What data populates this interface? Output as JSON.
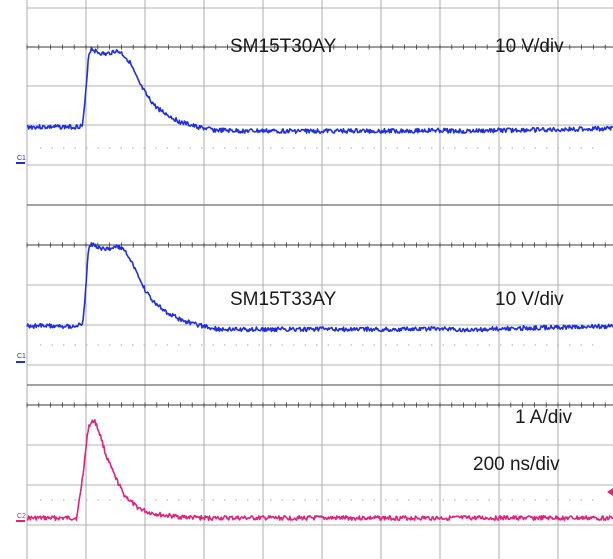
{
  "chart_data": [
    {
      "type": "line",
      "title": "",
      "label": "SM15T30AY",
      "scale_label": "10 V/div",
      "channel": "C1",
      "color": "#1f2fe0",
      "xlabel": "",
      "ylabel": "",
      "xlim": [
        0,
        10
      ],
      "ylim": [
        -1,
        3.5
      ],
      "grid": true,
      "x": [
        0,
        0.8,
        0.95,
        1.0,
        1.05,
        1.1,
        1.2,
        1.35,
        1.5,
        1.6,
        1.75,
        1.9,
        2.05,
        2.2,
        2.4,
        2.6,
        2.9,
        3.2,
        3.6,
        4.2,
        5.0,
        6.0,
        7.0,
        7.5,
        8.0,
        9.0,
        10.0
      ],
      "values": [
        0,
        0,
        0.05,
        1.2,
        2.7,
        2.95,
        2.8,
        2.72,
        2.85,
        2.8,
        2.45,
        1.7,
        1.15,
        0.75,
        0.45,
        0.2,
        0.0,
        -0.12,
        -0.15,
        -0.15,
        -0.15,
        -0.15,
        -0.13,
        -0.16,
        -0.13,
        -0.1,
        -0.05
      ]
    },
    {
      "type": "line",
      "title": "",
      "label": "SM15T33AY",
      "scale_label": "10 V/div",
      "channel": "C1",
      "color": "#1f2fe0",
      "xlabel": "",
      "ylabel": "",
      "xlim": [
        0,
        10
      ],
      "ylim": [
        -1,
        3.5
      ],
      "grid": true,
      "x": [
        0,
        0.8,
        0.95,
        1.0,
        1.05,
        1.1,
        1.2,
        1.35,
        1.5,
        1.6,
        1.75,
        1.9,
        2.05,
        2.2,
        2.4,
        2.6,
        2.9,
        3.2,
        3.6,
        4.2,
        5.0,
        6.0,
        7.0,
        7.5,
        8.0,
        9.0,
        10.0
      ],
      "values": [
        0,
        0,
        0.05,
        1.3,
        2.85,
        3.05,
        2.9,
        2.82,
        2.95,
        2.9,
        2.55,
        1.8,
        1.2,
        0.8,
        0.5,
        0.25,
        0.05,
        -0.1,
        -0.12,
        -0.12,
        -0.12,
        -0.12,
        -0.1,
        -0.14,
        -0.1,
        -0.05,
        0.0
      ]
    },
    {
      "type": "line",
      "title": "",
      "label": "",
      "scale_label": "1 A/div",
      "time_scale": "200 ns/div",
      "channel": "C2",
      "color": "#e0237a",
      "xlabel": "",
      "ylabel": "",
      "xlim": [
        0,
        10
      ],
      "ylim": [
        -0.5,
        2.5
      ],
      "grid": true,
      "x": [
        0,
        0.85,
        0.95,
        1.05,
        1.15,
        1.25,
        1.35,
        1.5,
        1.65,
        1.85,
        2.05,
        2.3,
        2.6,
        3.0,
        4.0,
        6.0,
        8.0,
        10.0
      ],
      "values": [
        0,
        0,
        0.7,
        1.55,
        1.65,
        1.4,
        1.05,
        0.7,
        0.4,
        0.2,
        0.1,
        0.05,
        0.02,
        0.0,
        0.0,
        0.0,
        0.0,
        0.0
      ]
    }
  ]
}
